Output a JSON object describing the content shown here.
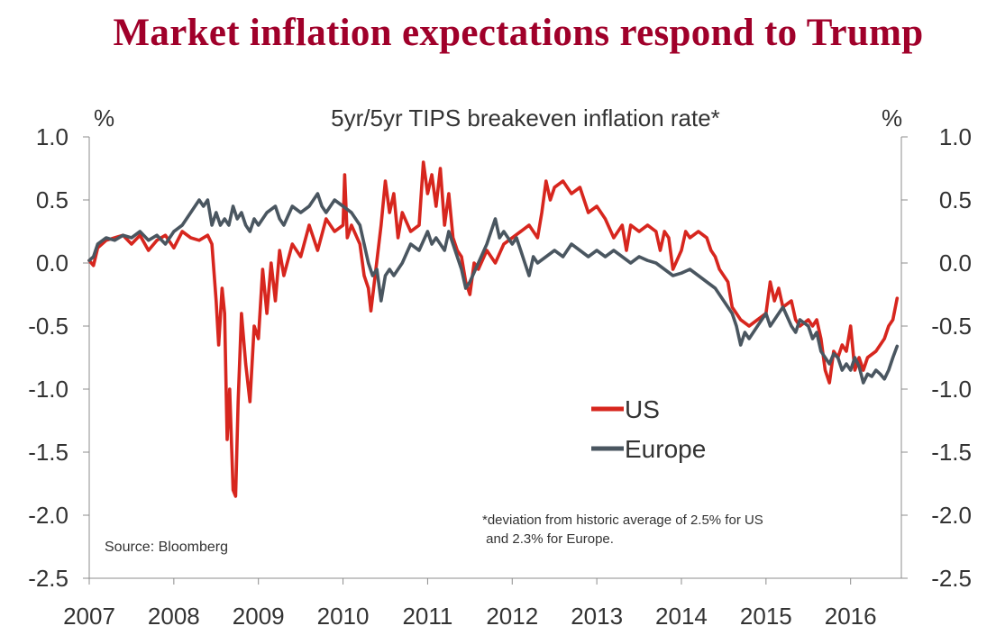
{
  "title": "Market inflation expectations respond to Trump",
  "chart_data": {
    "type": "line",
    "subtitle": "5yr/5yr TIPS breakeven inflation rate*",
    "left_unit": "%",
    "right_unit": "%",
    "ylim": [
      -2.5,
      1.0
    ],
    "yticks": [
      "1.0",
      "0.5",
      "0.0",
      "-0.5",
      "-1.0",
      "-1.5",
      "-2.0",
      "-2.5"
    ],
    "xlim": [
      2007.0,
      2016.6
    ],
    "xticks": [
      "2007",
      "2008",
      "2009",
      "2010",
      "2011",
      "2012",
      "2013",
      "2014",
      "2015",
      "2016"
    ],
    "grid": false,
    "source": "Source: Bloomberg",
    "footnote": [
      "*deviation from historic average of 2.5% for US",
      " and 2.3% for Europe."
    ],
    "legend_position": "center-right",
    "series": [
      {
        "name": "US",
        "color": "#d7261e",
        "points": [
          [
            2007.0,
            0.02
          ],
          [
            2007.05,
            -0.02
          ],
          [
            2007.1,
            0.12
          ],
          [
            2007.2,
            0.18
          ],
          [
            2007.3,
            0.2
          ],
          [
            2007.4,
            0.22
          ],
          [
            2007.5,
            0.15
          ],
          [
            2007.6,
            0.22
          ],
          [
            2007.7,
            0.1
          ],
          [
            2007.8,
            0.18
          ],
          [
            2007.9,
            0.22
          ],
          [
            2008.0,
            0.12
          ],
          [
            2008.1,
            0.25
          ],
          [
            2008.2,
            0.2
          ],
          [
            2008.3,
            0.18
          ],
          [
            2008.4,
            0.22
          ],
          [
            2008.45,
            0.15
          ],
          [
            2008.5,
            -0.3
          ],
          [
            2008.53,
            -0.65
          ],
          [
            2008.57,
            -0.2
          ],
          [
            2008.6,
            -0.4
          ],
          [
            2008.63,
            -1.4
          ],
          [
            2008.66,
            -1.0
          ],
          [
            2008.7,
            -1.8
          ],
          [
            2008.73,
            -1.85
          ],
          [
            2008.76,
            -1.1
          ],
          [
            2008.8,
            -0.4
          ],
          [
            2008.85,
            -0.8
          ],
          [
            2008.9,
            -1.1
          ],
          [
            2008.95,
            -0.5
          ],
          [
            2009.0,
            -0.6
          ],
          [
            2009.05,
            -0.05
          ],
          [
            2009.1,
            -0.4
          ],
          [
            2009.15,
            0.0
          ],
          [
            2009.2,
            -0.3
          ],
          [
            2009.25,
            0.1
          ],
          [
            2009.3,
            -0.1
          ],
          [
            2009.4,
            0.15
          ],
          [
            2009.5,
            0.05
          ],
          [
            2009.6,
            0.3
          ],
          [
            2009.7,
            0.1
          ],
          [
            2009.8,
            0.35
          ],
          [
            2009.9,
            0.25
          ],
          [
            2010.0,
            0.3
          ],
          [
            2010.02,
            0.7
          ],
          [
            2010.05,
            0.2
          ],
          [
            2010.1,
            0.3
          ],
          [
            2010.2,
            0.15
          ],
          [
            2010.25,
            -0.1
          ],
          [
            2010.3,
            -0.2
          ],
          [
            2010.33,
            -0.38
          ],
          [
            2010.38,
            -0.1
          ],
          [
            2010.45,
            0.3
          ],
          [
            2010.5,
            0.65
          ],
          [
            2010.55,
            0.4
          ],
          [
            2010.6,
            0.55
          ],
          [
            2010.65,
            0.2
          ],
          [
            2010.7,
            0.4
          ],
          [
            2010.8,
            0.25
          ],
          [
            2010.9,
            0.3
          ],
          [
            2010.95,
            0.8
          ],
          [
            2011.0,
            0.55
          ],
          [
            2011.05,
            0.7
          ],
          [
            2011.1,
            0.45
          ],
          [
            2011.15,
            0.75
          ],
          [
            2011.2,
            0.3
          ],
          [
            2011.25,
            0.55
          ],
          [
            2011.3,
            0.2
          ],
          [
            2011.35,
            0.1
          ],
          [
            2011.4,
            0.05
          ],
          [
            2011.45,
            -0.15
          ],
          [
            2011.5,
            -0.25
          ],
          [
            2011.55,
            0.0
          ],
          [
            2011.6,
            -0.05
          ],
          [
            2011.7,
            0.1
          ],
          [
            2011.8,
            0.0
          ],
          [
            2011.9,
            0.15
          ],
          [
            2012.0,
            0.2
          ],
          [
            2012.1,
            0.25
          ],
          [
            2012.2,
            0.3
          ],
          [
            2012.3,
            0.2
          ],
          [
            2012.35,
            0.4
          ],
          [
            2012.4,
            0.65
          ],
          [
            2012.45,
            0.5
          ],
          [
            2012.5,
            0.6
          ],
          [
            2012.6,
            0.65
          ],
          [
            2012.7,
            0.55
          ],
          [
            2012.8,
            0.6
          ],
          [
            2012.9,
            0.4
          ],
          [
            2013.0,
            0.45
          ],
          [
            2013.1,
            0.35
          ],
          [
            2013.2,
            0.2
          ],
          [
            2013.3,
            0.3
          ],
          [
            2013.35,
            0.1
          ],
          [
            2013.4,
            0.3
          ],
          [
            2013.5,
            0.25
          ],
          [
            2013.6,
            0.3
          ],
          [
            2013.7,
            0.25
          ],
          [
            2013.75,
            0.1
          ],
          [
            2013.8,
            0.25
          ],
          [
            2013.85,
            0.2
          ],
          [
            2013.9,
            -0.05
          ],
          [
            2014.0,
            0.1
          ],
          [
            2014.05,
            0.25
          ],
          [
            2014.1,
            0.2
          ],
          [
            2014.2,
            0.25
          ],
          [
            2014.3,
            0.2
          ],
          [
            2014.35,
            0.1
          ],
          [
            2014.4,
            0.05
          ],
          [
            2014.45,
            -0.05
          ],
          [
            2014.5,
            -0.1
          ],
          [
            2014.55,
            -0.15
          ],
          [
            2014.6,
            -0.35
          ],
          [
            2014.7,
            -0.45
          ],
          [
            2014.8,
            -0.5
          ],
          [
            2014.9,
            -0.45
          ],
          [
            2015.0,
            -0.4
          ],
          [
            2015.05,
            -0.15
          ],
          [
            2015.1,
            -0.3
          ],
          [
            2015.15,
            -0.2
          ],
          [
            2015.2,
            -0.35
          ],
          [
            2015.3,
            -0.3
          ],
          [
            2015.35,
            -0.45
          ],
          [
            2015.4,
            -0.5
          ],
          [
            2015.5,
            -0.45
          ],
          [
            2015.55,
            -0.5
          ],
          [
            2015.6,
            -0.45
          ],
          [
            2015.65,
            -0.6
          ],
          [
            2015.7,
            -0.85
          ],
          [
            2015.75,
            -0.95
          ],
          [
            2015.8,
            -0.7
          ],
          [
            2015.85,
            -0.75
          ],
          [
            2015.9,
            -0.65
          ],
          [
            2015.95,
            -0.7
          ],
          [
            2016.0,
            -0.5
          ],
          [
            2016.05,
            -0.85
          ],
          [
            2016.1,
            -0.75
          ],
          [
            2016.15,
            -0.85
          ],
          [
            2016.2,
            -0.75
          ],
          [
            2016.3,
            -0.7
          ],
          [
            2016.35,
            -0.65
          ],
          [
            2016.4,
            -0.6
          ],
          [
            2016.45,
            -0.5
          ],
          [
            2016.5,
            -0.45
          ],
          [
            2016.55,
            -0.28
          ]
        ]
      },
      {
        "name": "Europe",
        "color": "#4a5660",
        "points": [
          [
            2007.0,
            0.02
          ],
          [
            2007.05,
            0.05
          ],
          [
            2007.1,
            0.15
          ],
          [
            2007.2,
            0.2
          ],
          [
            2007.3,
            0.18
          ],
          [
            2007.4,
            0.22
          ],
          [
            2007.5,
            0.2
          ],
          [
            2007.6,
            0.25
          ],
          [
            2007.7,
            0.18
          ],
          [
            2007.8,
            0.22
          ],
          [
            2007.9,
            0.15
          ],
          [
            2008.0,
            0.25
          ],
          [
            2008.1,
            0.3
          ],
          [
            2008.2,
            0.4
          ],
          [
            2008.3,
            0.5
          ],
          [
            2008.35,
            0.45
          ],
          [
            2008.4,
            0.5
          ],
          [
            2008.45,
            0.3
          ],
          [
            2008.5,
            0.4
          ],
          [
            2008.55,
            0.3
          ],
          [
            2008.6,
            0.35
          ],
          [
            2008.65,
            0.3
          ],
          [
            2008.7,
            0.45
          ],
          [
            2008.75,
            0.35
          ],
          [
            2008.8,
            0.4
          ],
          [
            2008.85,
            0.3
          ],
          [
            2008.9,
            0.25
          ],
          [
            2008.95,
            0.35
          ],
          [
            2009.0,
            0.3
          ],
          [
            2009.1,
            0.4
          ],
          [
            2009.2,
            0.45
          ],
          [
            2009.25,
            0.35
          ],
          [
            2009.3,
            0.3
          ],
          [
            2009.4,
            0.45
          ],
          [
            2009.5,
            0.4
          ],
          [
            2009.6,
            0.45
          ],
          [
            2009.7,
            0.55
          ],
          [
            2009.75,
            0.45
          ],
          [
            2009.8,
            0.4
          ],
          [
            2009.9,
            0.5
          ],
          [
            2010.0,
            0.45
          ],
          [
            2010.1,
            0.4
          ],
          [
            2010.2,
            0.3
          ],
          [
            2010.25,
            0.15
          ],
          [
            2010.3,
            0.0
          ],
          [
            2010.35,
            -0.1
          ],
          [
            2010.4,
            -0.05
          ],
          [
            2010.45,
            -0.3
          ],
          [
            2010.5,
            -0.1
          ],
          [
            2010.55,
            -0.05
          ],
          [
            2010.6,
            -0.1
          ],
          [
            2010.7,
            0.0
          ],
          [
            2010.8,
            0.15
          ],
          [
            2010.9,
            0.1
          ],
          [
            2011.0,
            0.25
          ],
          [
            2011.05,
            0.15
          ],
          [
            2011.1,
            0.2
          ],
          [
            2011.2,
            0.1
          ],
          [
            2011.25,
            0.25
          ],
          [
            2011.3,
            0.15
          ],
          [
            2011.35,
            0.05
          ],
          [
            2011.4,
            -0.05
          ],
          [
            2011.45,
            -0.2
          ],
          [
            2011.5,
            -0.15
          ],
          [
            2011.6,
            0.0
          ],
          [
            2011.7,
            0.15
          ],
          [
            2011.8,
            0.35
          ],
          [
            2011.85,
            0.2
          ],
          [
            2011.9,
            0.25
          ],
          [
            2012.0,
            0.15
          ],
          [
            2012.05,
            0.2
          ],
          [
            2012.1,
            0.1
          ],
          [
            2012.15,
            0.0
          ],
          [
            2012.2,
            -0.1
          ],
          [
            2012.25,
            0.05
          ],
          [
            2012.3,
            0.0
          ],
          [
            2012.4,
            0.05
          ],
          [
            2012.5,
            0.1
          ],
          [
            2012.6,
            0.05
          ],
          [
            2012.7,
            0.15
          ],
          [
            2012.8,
            0.1
          ],
          [
            2012.9,
            0.05
          ],
          [
            2013.0,
            0.1
          ],
          [
            2013.1,
            0.05
          ],
          [
            2013.2,
            0.1
          ],
          [
            2013.3,
            0.05
          ],
          [
            2013.4,
            0.0
          ],
          [
            2013.5,
            0.05
          ],
          [
            2013.6,
            0.02
          ],
          [
            2013.7,
            0.0
          ],
          [
            2013.8,
            -0.05
          ],
          [
            2013.9,
            -0.1
          ],
          [
            2014.0,
            -0.08
          ],
          [
            2014.1,
            -0.05
          ],
          [
            2014.2,
            -0.1
          ],
          [
            2014.3,
            -0.15
          ],
          [
            2014.4,
            -0.2
          ],
          [
            2014.5,
            -0.3
          ],
          [
            2014.6,
            -0.4
          ],
          [
            2014.65,
            -0.5
          ],
          [
            2014.7,
            -0.65
          ],
          [
            2014.75,
            -0.55
          ],
          [
            2014.8,
            -0.6
          ],
          [
            2014.9,
            -0.5
          ],
          [
            2015.0,
            -0.4
          ],
          [
            2015.05,
            -0.5
          ],
          [
            2015.1,
            -0.45
          ],
          [
            2015.2,
            -0.35
          ],
          [
            2015.3,
            -0.5
          ],
          [
            2015.35,
            -0.55
          ],
          [
            2015.4,
            -0.45
          ],
          [
            2015.5,
            -0.5
          ],
          [
            2015.55,
            -0.6
          ],
          [
            2015.6,
            -0.55
          ],
          [
            2015.65,
            -0.7
          ],
          [
            2015.7,
            -0.75
          ],
          [
            2015.75,
            -0.8
          ],
          [
            2015.8,
            -0.72
          ],
          [
            2015.85,
            -0.75
          ],
          [
            2015.9,
            -0.85
          ],
          [
            2015.95,
            -0.8
          ],
          [
            2016.0,
            -0.85
          ],
          [
            2016.05,
            -0.75
          ],
          [
            2016.1,
            -0.82
          ],
          [
            2016.15,
            -0.95
          ],
          [
            2016.2,
            -0.88
          ],
          [
            2016.25,
            -0.9
          ],
          [
            2016.3,
            -0.85
          ],
          [
            2016.35,
            -0.88
          ],
          [
            2016.4,
            -0.92
          ],
          [
            2016.45,
            -0.85
          ],
          [
            2016.5,
            -0.75
          ],
          [
            2016.55,
            -0.66
          ]
        ]
      }
    ]
  }
}
